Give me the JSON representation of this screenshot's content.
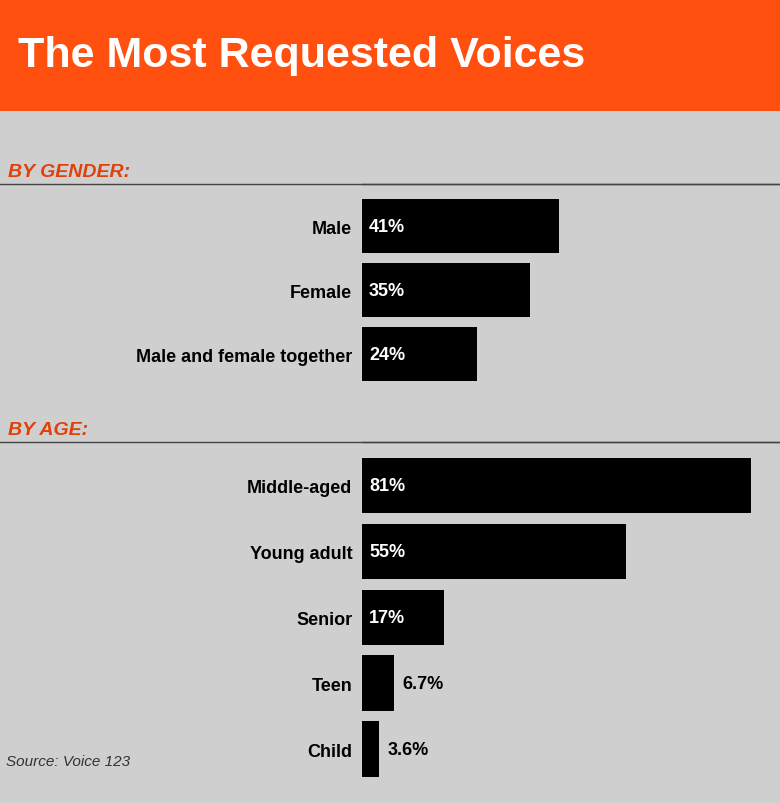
{
  "title": "The Most Requested Voices",
  "source": "Source: Voice 123",
  "chart_data": [
    {
      "type": "bar",
      "title": "BY GENDER:",
      "orientation": "horizontal",
      "categories": [
        "Male",
        "Female",
        "Male and female together"
      ],
      "values": [
        41,
        35,
        24
      ],
      "value_labels": [
        "41%",
        "35%",
        "24%"
      ],
      "data_labels": true,
      "tick_labels": "y",
      "color": "#000000",
      "xlim": [
        0,
        87
      ],
      "xticks": [],
      "grid": false
    },
    {
      "type": "bar",
      "title": "BY AGE:",
      "orientation": "horizontal",
      "categories": [
        "Middle-aged",
        "Young adult",
        "Senior",
        "Teen",
        "Child"
      ],
      "values": [
        81,
        55,
        17,
        6.7,
        3.6
      ],
      "value_labels": [
        "81%",
        "55%",
        "17%",
        "6.7%",
        "3.6%"
      ],
      "data_labels": true,
      "tick_labels": "y",
      "color": "#000000",
      "xlim": [
        0,
        87
      ],
      "xticks": [],
      "grid": false
    }
  ]
}
